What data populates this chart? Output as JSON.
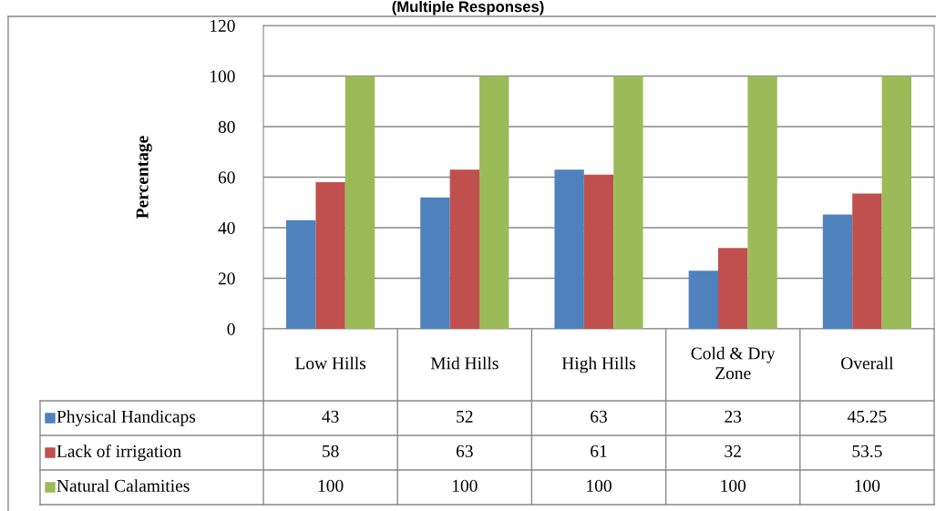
{
  "chart_data": {
    "type": "bar",
    "title": "(Multiple Responses)",
    "ylabel": "Percentage",
    "categories": [
      "Low Hills",
      "Mid Hills",
      "High Hills",
      "Cold & Dry\nZone",
      "Overall"
    ],
    "series": [
      {
        "name": "Physical Handicaps",
        "color": "#4f81bd",
        "values": [
          43,
          52,
          63,
          23,
          45.25
        ]
      },
      {
        "name": "Lack of irrigation",
        "color": "#c0504d",
        "values": [
          58,
          63,
          61,
          32,
          53.5
        ]
      },
      {
        "name": "Natural Calamities",
        "color": "#9bbb59",
        "values": [
          100,
          100,
          100,
          100,
          100
        ]
      }
    ],
    "ylim": [
      0,
      120
    ],
    "yticks": [
      0,
      20,
      40,
      60,
      80,
      100,
      120
    ],
    "grid": "y",
    "legend": "left",
    "data_labels": true
  }
}
